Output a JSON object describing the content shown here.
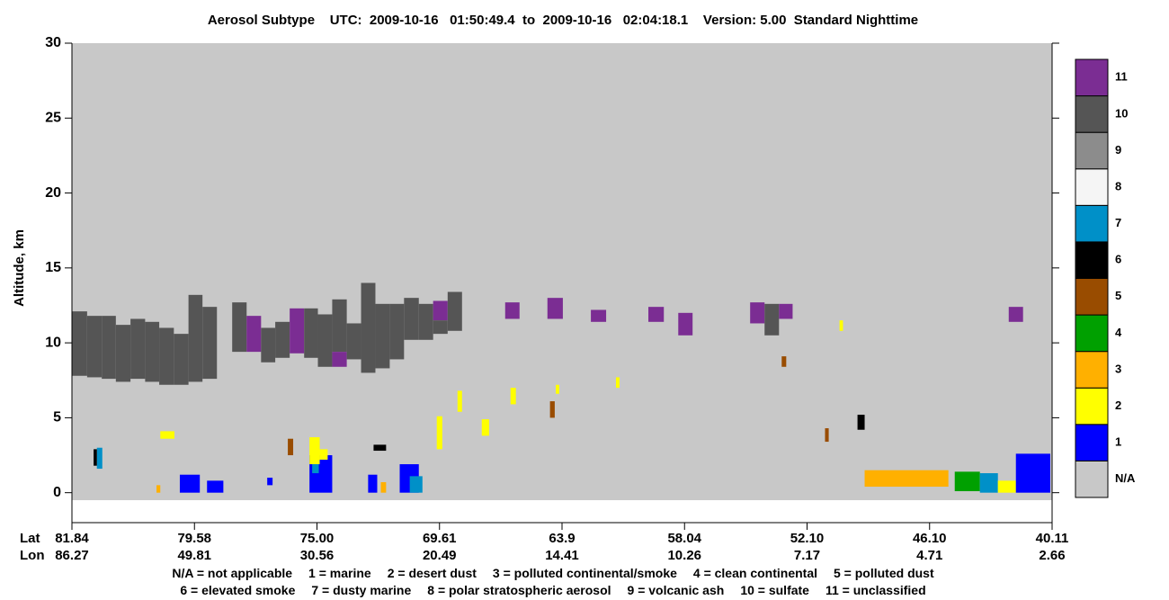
{
  "chart_data": {
    "type": "curtain",
    "title": "Aerosol Subtype    UTC:  2009-10-16   01:50:49.4  to  2009-10-16   02:04:18.1    Version: 5.00  Standard Nighttime",
    "y_label": "Altitude, km",
    "x_row_labels": [
      "Lat",
      "Lon"
    ],
    "ylim": [
      -2,
      30
    ],
    "yticks": [
      0,
      5,
      10,
      15,
      20,
      25,
      30
    ],
    "xlim": [
      81.84,
      40.11
    ],
    "xticks": [
      81.84,
      79.58,
      {
        "value": 75,
        "label": "75.00"
      },
      69.61,
      63.9,
      58.04,
      {
        "value": 52.1,
        "label": "52.10"
      },
      {
        "value": 46.1,
        "label": "46.10"
      },
      40.11
    ],
    "lon_ticks": [
      86.27,
      49.81,
      30.56,
      20.49,
      14.41,
      10.26,
      7.17,
      4.71,
      2.66
    ],
    "na_altitude_range": [
      -0.5,
      30
    ],
    "classes": [
      "N/A",
      "1",
      "2",
      "3",
      "4",
      "5",
      "6",
      "7",
      "8",
      "9",
      "10",
      "11"
    ],
    "class_colors": [
      "#c8c8c8",
      "#0000ff",
      "#ffff00",
      "#ffb000",
      "#00a000",
      "#994c00",
      "#000000",
      "#0090c8",
      "#f5f5f5",
      "#8c8c8c",
      "#555555",
      "#7b2d93"
    ],
    "class_descriptions": [
      "N/A = not applicable",
      "1 = marine",
      "2 = desert dust",
      "3 = polluted continental/smoke",
      "4 = clean continental",
      "5 = polluted dust",
      "6 = elevated smoke",
      "7 = dusty marine",
      "8 = polar stratospheric aerosol",
      "9 = volcanic ash",
      "10 = sulfate",
      "11 = unclassified"
    ],
    "cells": [
      {
        "class": "10",
        "lat": [
          81.84,
          81.56
        ],
        "alt": [
          7.8,
          12.1
        ]
      },
      {
        "class": "10",
        "lat": [
          81.56,
          81.29
        ],
        "alt": [
          7.7,
          11.8
        ]
      },
      {
        "class": "10",
        "lat": [
          81.29,
          81.03
        ],
        "alt": [
          7.6,
          11.8
        ]
      },
      {
        "class": "10",
        "lat": [
          81.03,
          80.76
        ],
        "alt": [
          7.4,
          11.2
        ]
      },
      {
        "class": "10",
        "lat": [
          80.76,
          80.49
        ],
        "alt": [
          7.6,
          11.6
        ]
      },
      {
        "class": "10",
        "lat": [
          80.49,
          80.23
        ],
        "alt": [
          7.4,
          11.4
        ]
      },
      {
        "class": "10",
        "lat": [
          80.23,
          79.96
        ],
        "alt": [
          7.2,
          11.0
        ]
      },
      {
        "class": "10",
        "lat": [
          79.96,
          79.69
        ],
        "alt": [
          7.2,
          10.6
        ]
      },
      {
        "class": "10",
        "lat": [
          79.69,
          79.28
        ],
        "alt": [
          7.4,
          13.2
        ]
      },
      {
        "class": "10",
        "lat": [
          79.28,
          78.74
        ],
        "alt": [
          7.6,
          12.4
        ]
      },
      {
        "class": "10",
        "lat": [
          78.17,
          77.63
        ],
        "alt": [
          9.4,
          12.7
        ]
      },
      {
        "class": "11",
        "lat": [
          77.63,
          77.09
        ],
        "alt": [
          9.4,
          11.8
        ]
      },
      {
        "class": "10",
        "lat": [
          77.09,
          76.56
        ],
        "alt": [
          8.7,
          11.0
        ]
      },
      {
        "class": "10",
        "lat": [
          76.56,
          76.02
        ],
        "alt": [
          9.0,
          11.4
        ]
      },
      {
        "class": "11",
        "lat": [
          76.02,
          75.48
        ],
        "alt": [
          9.3,
          12.3
        ]
      },
      {
        "class": "10",
        "lat": [
          75.48,
          74.96
        ],
        "alt": [
          9.0,
          12.3
        ]
      },
      {
        "class": "10",
        "lat": [
          74.96,
          74.33
        ],
        "alt": [
          8.4,
          11.9
        ]
      },
      {
        "class": "10",
        "lat": [
          74.33,
          73.69
        ],
        "alt": [
          9.4,
          12.9
        ]
      },
      {
        "class": "11",
        "lat": [
          74.33,
          73.69
        ],
        "alt": [
          8.4,
          9.4
        ]
      },
      {
        "class": "10",
        "lat": [
          73.69,
          73.06
        ],
        "alt": [
          8.9,
          11.3
        ]
      },
      {
        "class": "10",
        "lat": [
          73.06,
          72.43
        ],
        "alt": [
          8.0,
          14.0
        ]
      },
      {
        "class": "10",
        "lat": [
          72.43,
          71.8
        ],
        "alt": [
          8.3,
          12.6
        ]
      },
      {
        "class": "10",
        "lat": [
          71.8,
          71.17
        ],
        "alt": [
          8.9,
          12.6
        ]
      },
      {
        "class": "10",
        "lat": [
          71.17,
          70.52
        ],
        "alt": [
          10.2,
          13.0
        ]
      },
      {
        "class": "10",
        "lat": [
          70.52,
          69.89
        ],
        "alt": [
          10.2,
          12.6
        ]
      },
      {
        "class": "11",
        "lat": [
          69.89,
          69.23
        ],
        "alt": [
          11.5,
          12.8
        ]
      },
      {
        "class": "10",
        "lat": [
          69.89,
          69.23
        ],
        "alt": [
          10.6,
          11.5
        ]
      },
      {
        "class": "10",
        "lat": [
          69.23,
          68.56
        ],
        "alt": [
          10.8,
          13.4
        ]
      },
      {
        "class": "11",
        "lat": [
          66.55,
          65.88
        ],
        "alt": [
          11.6,
          12.7
        ]
      },
      {
        "class": "11",
        "lat": [
          64.58,
          63.86
        ],
        "alt": [
          11.6,
          13.0
        ]
      },
      {
        "class": "11",
        "lat": [
          62.52,
          61.79
        ],
        "alt": [
          11.4,
          12.2
        ]
      },
      {
        "class": "11",
        "lat": [
          59.77,
          59.03
        ],
        "alt": [
          11.4,
          12.4
        ]
      },
      {
        "class": "11",
        "lat": [
          58.34,
          57.65
        ],
        "alt": [
          10.5,
          12.0
        ]
      },
      {
        "class": "11",
        "lat": [
          54.86,
          54.16
        ],
        "alt": [
          11.3,
          12.7
        ]
      },
      {
        "class": "10",
        "lat": [
          54.16,
          53.46
        ],
        "alt": [
          10.5,
          12.6
        ]
      },
      {
        "class": "11",
        "lat": [
          53.46,
          52.8
        ],
        "alt": [
          11.6,
          12.6
        ]
      },
      {
        "class": "11",
        "lat": [
          42.23,
          41.53
        ],
        "alt": [
          11.4,
          12.4
        ]
      },
      {
        "class": "1",
        "lat": [
          79.85,
          79.38
        ],
        "alt": [
          0,
          1.2
        ]
      },
      {
        "class": "1",
        "lat": [
          79.11,
          78.5
        ],
        "alt": [
          0,
          0.8
        ]
      },
      {
        "class": "1",
        "lat": [
          76.86,
          76.66
        ],
        "alt": [
          0.5,
          1.0
        ]
      },
      {
        "class": "1",
        "lat": [
          75.28,
          74.33
        ],
        "alt": [
          0,
          2.5
        ]
      },
      {
        "class": "1",
        "lat": [
          72.75,
          72.35
        ],
        "alt": [
          0,
          1.2
        ]
      },
      {
        "class": "1",
        "lat": [
          71.36,
          70.52
        ],
        "alt": [
          0,
          1.9
        ]
      },
      {
        "class": "7",
        "lat": [
          81.38,
          81.28
        ],
        "alt": [
          1.6,
          3.0
        ]
      },
      {
        "class": "7",
        "lat": [
          70.92,
          70.36
        ],
        "alt": [
          0,
          1.1
        ]
      },
      {
        "class": "7",
        "lat": [
          75.18,
          74.92
        ],
        "alt": [
          1.3,
          1.9
        ]
      },
      {
        "class": "6",
        "lat": [
          81.44,
          81.38
        ],
        "alt": [
          1.8,
          2.9
        ]
      },
      {
        "class": "6",
        "lat": [
          72.51,
          71.96
        ],
        "alt": [
          2.8,
          3.2
        ]
      },
      {
        "class": "6",
        "lat": [
          49.63,
          49.28
        ],
        "alt": [
          4.2,
          5.2
        ]
      },
      {
        "class": "2",
        "lat": [
          80.21,
          79.95
        ],
        "alt": [
          3.6,
          4.1
        ]
      },
      {
        "class": "2",
        "lat": [
          75.28,
          74.88
        ],
        "alt": [
          1.9,
          3.7
        ]
      },
      {
        "class": "2",
        "lat": [
          74.88,
          74.53
        ],
        "alt": [
          2.2,
          2.9
        ]
      },
      {
        "class": "2",
        "lat": [
          67.64,
          67.3
        ],
        "alt": [
          3.8,
          4.9
        ]
      },
      {
        "class": "2",
        "lat": [
          68.77,
          68.56
        ],
        "alt": [
          5.4,
          6.8
        ]
      },
      {
        "class": "2",
        "lat": [
          66.3,
          66.05
        ],
        "alt": [
          5.9,
          7.0
        ]
      },
      {
        "class": "2",
        "lat": [
          64.19,
          64.03
        ],
        "alt": [
          6.6,
          7.2
        ]
      },
      {
        "class": "2",
        "lat": [
          61.32,
          61.15
        ],
        "alt": [
          7.0,
          7.7
        ]
      },
      {
        "class": "2",
        "lat": [
          69.73,
          69.48
        ],
        "alt": [
          2.9,
          5.1
        ]
      },
      {
        "class": "2",
        "lat": [
          50.51,
          50.34
        ],
        "alt": [
          10.8,
          11.5
        ]
      },
      {
        "class": "5",
        "lat": [
          76.09,
          75.89
        ],
        "alt": [
          2.5,
          3.6
        ]
      },
      {
        "class": "5",
        "lat": [
          64.46,
          64.24
        ],
        "alt": [
          5.0,
          6.1
        ]
      },
      {
        "class": "5",
        "lat": [
          51.22,
          51.04
        ],
        "alt": [
          3.4,
          4.3
        ]
      },
      {
        "class": "5",
        "lat": [
          53.33,
          53.11
        ],
        "alt": [
          8.4,
          9.1
        ]
      },
      {
        "class": "3",
        "lat": [
          49.28,
          45.18
        ],
        "alt": [
          0.4,
          1.5
        ]
      },
      {
        "class": "3",
        "lat": [
          72.19,
          71.96
        ],
        "alt": [
          0,
          0.7
        ]
      },
      {
        "class": "3",
        "lat": [
          80.28,
          80.21
        ],
        "alt": [
          0,
          0.5
        ]
      },
      {
        "class": "4",
        "lat": [
          44.87,
          43.64
        ],
        "alt": [
          0.1,
          1.4
        ]
      },
      {
        "class": "7",
        "lat": [
          43.64,
          42.76
        ],
        "alt": [
          0,
          1.3
        ]
      },
      {
        "class": "2",
        "lat": [
          42.76,
          41.88
        ],
        "alt": [
          0,
          0.8
        ]
      },
      {
        "class": "1",
        "lat": [
          41.88,
          40.2
        ],
        "alt": [
          0,
          2.6
        ]
      }
    ]
  }
}
